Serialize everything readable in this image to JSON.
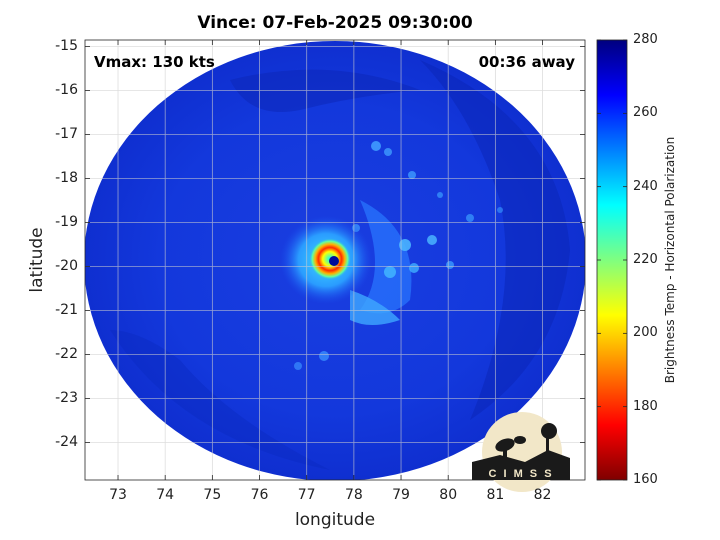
{
  "title": "Vince: 07-Feb-2025 09:30:00",
  "annotations": {
    "vmax": "Vmax: 130 kts",
    "time_away": "00:36 away"
  },
  "axes": {
    "xlabel": "longitude",
    "ylabel": "latitude",
    "xlim": [
      72.3,
      82.9
    ],
    "ylim": [
      -24.85,
      -14.85
    ],
    "xticks": [
      "73",
      "74",
      "75",
      "76",
      "77",
      "78",
      "79",
      "80",
      "81",
      "82"
    ],
    "yticks": [
      "-15",
      "-16",
      "-17",
      "-18",
      "-19",
      "-20",
      "-21",
      "-22",
      "-23",
      "-24"
    ],
    "grid": true
  },
  "colorbar": {
    "label": "Brightness Temp - Horizontal Polarization",
    "min": 160,
    "max": 280,
    "ticks": [
      "280",
      "260",
      "240",
      "220",
      "200",
      "180",
      "160"
    ],
    "colormap": "jet"
  },
  "storm": {
    "center_lon": 77.5,
    "center_lat": -19.95
  },
  "logo": {
    "text": "CIMSS"
  }
}
